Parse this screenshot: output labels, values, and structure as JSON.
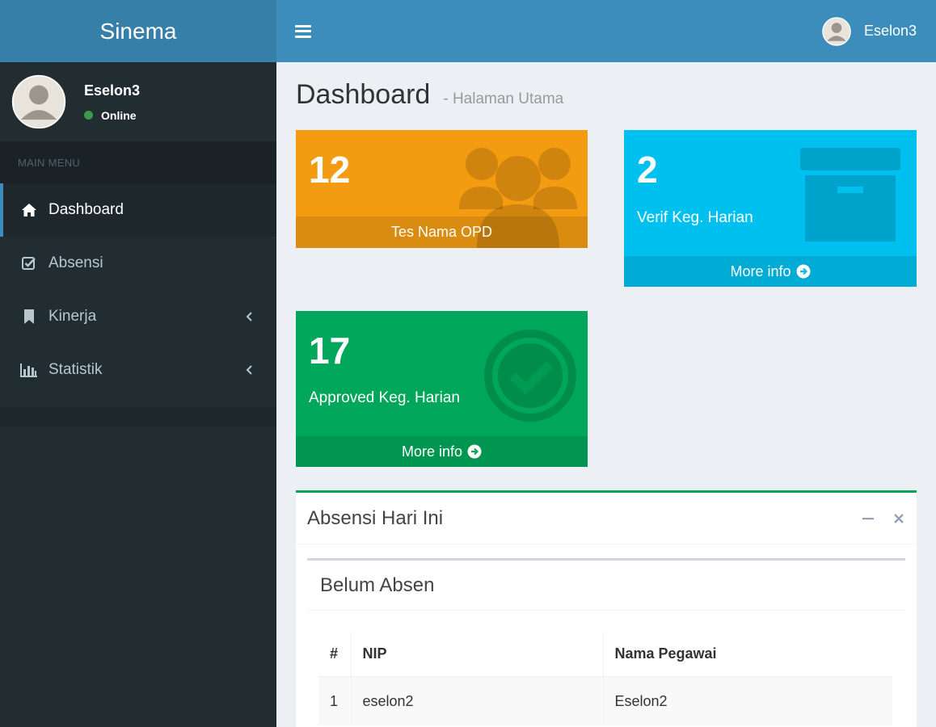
{
  "brand": {
    "title": "Sinema"
  },
  "navbar": {
    "user_name": "Eselon3"
  },
  "sidebar": {
    "user_name": "Eselon3",
    "status": "Online",
    "menu_header": "MAIN MENU",
    "items": [
      {
        "label": "Dashboard",
        "icon": "home-icon"
      },
      {
        "label": "Absensi",
        "icon": "checkbox-icon"
      },
      {
        "label": "Kinerja",
        "icon": "bookmark-icon"
      },
      {
        "label": "Statistik",
        "icon": "bar-chart-icon"
      }
    ]
  },
  "page": {
    "title": "Dashboard",
    "subtitle": "- Halaman Utama"
  },
  "boxes": {
    "opd": {
      "number": "12",
      "label": "Tes Nama OPD",
      "color": "#f39c12",
      "icon": "users-icon"
    },
    "verif": {
      "number": "2",
      "label": "Verif Keg. Harian",
      "footer": "More info",
      "color": "#00c0ef",
      "icon": "archive-icon"
    },
    "approved": {
      "number": "17",
      "label": "Approved Keg. Harian",
      "footer": "More info",
      "color": "#00a65a",
      "icon": "check-circle-icon"
    }
  },
  "panel": {
    "title": "Absensi Hari Ini",
    "inner_title": "Belum Absen",
    "table": {
      "headers": [
        "#",
        "NIP",
        "Nama Pegawai"
      ],
      "rows": [
        [
          "1",
          "eselon2",
          "Eselon2"
        ]
      ]
    }
  },
  "colors": {
    "header": "#3c8dbc",
    "sidebar": "#222d32"
  }
}
